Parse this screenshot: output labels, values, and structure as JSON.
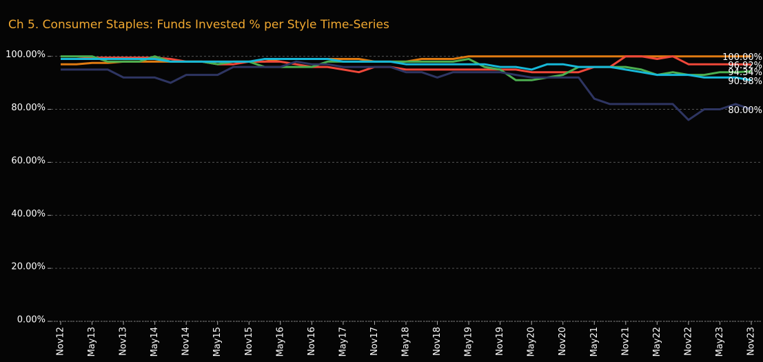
{
  "chart_data": {
    "type": "line",
    "title": "Ch 5. Consumer Staples:  Funds Invested % per Style Time-Series",
    "categories": [
      "Nov12",
      null,
      "May13",
      null,
      "Nov13",
      null,
      "May14",
      null,
      "Nov14",
      null,
      "May15",
      null,
      "Nov15",
      null,
      "May16",
      null,
      "Nov16",
      null,
      "May17",
      null,
      "Nov17",
      null,
      "May18",
      null,
      "Nov18",
      null,
      "May19",
      null,
      "Nov19",
      null,
      "May20",
      null,
      "Nov20",
      null,
      "May21",
      null,
      "Nov21",
      null,
      "May22",
      null,
      "Nov22",
      null,
      "May23",
      null,
      "Nov23"
    ],
    "ylim": [
      0,
      102
    ],
    "yticks": [
      {
        "value": 0,
        "label": "0.00%"
      },
      {
        "value": 20,
        "label": "20.00%"
      },
      {
        "value": 40,
        "label": "40.00%"
      },
      {
        "value": 60,
        "label": "60.00%"
      },
      {
        "value": 80,
        "label": "80.00%"
      },
      {
        "value": 100,
        "label": "100.00%"
      }
    ],
    "grid": true,
    "series": [
      {
        "color": "#e07b12",
        "values": [
          97,
          97,
          97.5,
          97.5,
          98,
          98,
          98,
          98,
          98,
          98,
          98,
          98,
          98,
          98,
          99,
          99,
          99,
          99,
          99,
          99,
          98,
          98,
          98,
          99,
          99,
          99,
          100,
          100,
          100,
          100,
          100,
          100,
          100,
          100,
          100,
          100,
          100,
          100,
          100,
          100,
          100,
          100,
          100,
          100,
          100
        ],
        "value_labels": [
          null,
          null,
          null,
          null,
          null,
          null,
          null,
          null,
          null,
          null,
          null,
          null,
          null,
          null,
          null,
          null,
          null,
          null,
          null,
          null,
          null,
          null,
          null,
          null,
          null,
          null,
          null,
          null,
          null,
          null,
          null,
          null,
          null,
          null,
          null,
          null,
          null,
          null,
          null,
          null,
          null,
          null,
          null,
          null,
          "100.00%"
        ]
      },
      {
        "color": "#f0483a",
        "values": [
          99,
          99,
          99.5,
          99.5,
          99.5,
          99.5,
          99.5,
          99,
          98,
          98,
          97,
          97,
          98,
          98,
          98,
          97,
          96,
          96,
          95,
          94,
          96,
          96,
          95,
          95,
          95,
          95,
          95,
          95,
          95,
          95,
          94,
          94,
          94,
          94,
          96,
          96,
          100,
          100,
          99,
          100,
          97,
          97,
          97,
          97,
          96.92
        ],
        "value_labels": [
          null,
          null,
          null,
          null,
          null,
          null,
          null,
          null,
          null,
          null,
          null,
          null,
          null,
          null,
          null,
          null,
          null,
          null,
          null,
          null,
          null,
          null,
          null,
          null,
          null,
          null,
          null,
          null,
          null,
          null,
          null,
          null,
          null,
          null,
          null,
          null,
          null,
          null,
          null,
          null,
          null,
          null,
          null,
          null,
          "96.92%"
        ]
      },
      {
        "color": "#4caf50",
        "values": [
          100,
          100,
          100,
          98,
          98,
          98,
          100,
          98,
          98,
          98,
          97,
          98,
          98,
          96,
          96,
          96,
          96,
          98,
          98,
          98,
          98,
          98,
          98,
          98,
          98,
          98,
          99,
          96,
          95,
          91,
          91,
          92,
          93,
          96,
          96,
          96,
          96,
          95,
          93,
          94,
          93,
          93,
          94,
          94,
          94.34
        ],
        "value_labels": [
          null,
          null,
          null,
          null,
          null,
          null,
          null,
          null,
          null,
          null,
          null,
          null,
          null,
          null,
          null,
          null,
          null,
          null,
          null,
          null,
          null,
          null,
          null,
          null,
          null,
          null,
          null,
          null,
          null,
          null,
          null,
          null,
          null,
          null,
          null,
          null,
          null,
          null,
          null,
          null,
          null,
          null,
          null,
          null,
          "94.34%"
        ]
      },
      {
        "color": "#17b8d8",
        "values": [
          99,
          99,
          99,
          99,
          99,
          99,
          99,
          98,
          98,
          98,
          98,
          98,
          98,
          99,
          99,
          99,
          99,
          99,
          98,
          98,
          98,
          98,
          97,
          97,
          97,
          97,
          97,
          97,
          96,
          96,
          95,
          97,
          97,
          96,
          96,
          96,
          95,
          94,
          93,
          93,
          93,
          92,
          92,
          92,
          90.98
        ],
        "value_labels": [
          null,
          null,
          null,
          null,
          null,
          null,
          null,
          null,
          null,
          null,
          null,
          null,
          null,
          null,
          null,
          null,
          null,
          null,
          null,
          null,
          null,
          null,
          null,
          null,
          null,
          null,
          null,
          null,
          null,
          null,
          null,
          null,
          null,
          null,
          null,
          null,
          null,
          null,
          null,
          null,
          null,
          null,
          null,
          null,
          "90.98%"
        ]
      },
      {
        "color": "#2e3562",
        "values": [
          95,
          95,
          95,
          95,
          92,
          92,
          92,
          90,
          93,
          93,
          93,
          96,
          96,
          96,
          96,
          98,
          97,
          97,
          96,
          96,
          96,
          96,
          94,
          94,
          92,
          94,
          94,
          94,
          94,
          93,
          92,
          92,
          92,
          92,
          84,
          82,
          82,
          82,
          82,
          82,
          76,
          80,
          80,
          82,
          80
        ],
        "value_labels": [
          null,
          null,
          null,
          null,
          null,
          null,
          null,
          null,
          null,
          null,
          null,
          null,
          null,
          null,
          null,
          null,
          null,
          null,
          null,
          null,
          null,
          null,
          null,
          null,
          null,
          null,
          null,
          null,
          null,
          null,
          null,
          null,
          null,
          null,
          null,
          null,
          null,
          null,
          null,
          null,
          null,
          null,
          null,
          null,
          "80.00%"
        ]
      }
    ]
  }
}
